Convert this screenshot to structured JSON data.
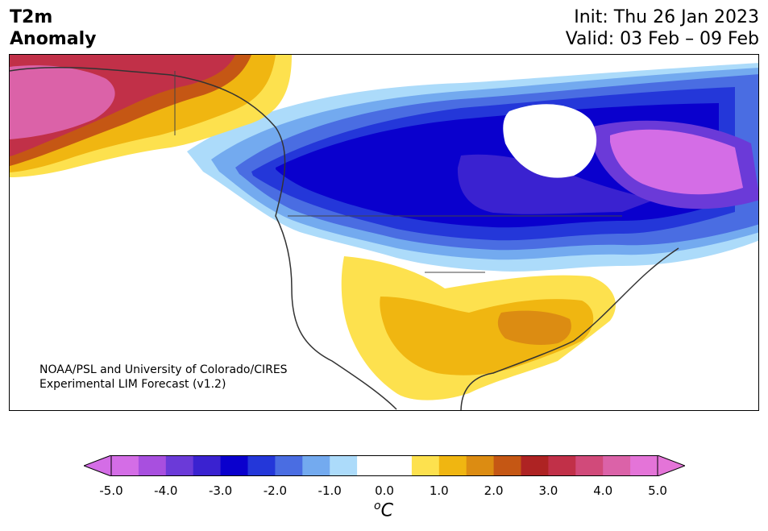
{
  "title": {
    "line1": "T2m",
    "line2": "Anomaly"
  },
  "dates": {
    "init": "Init: Thu 26 Jan 2023",
    "valid": "Valid: 03 Feb – 09 Feb"
  },
  "credit": {
    "line1": "NOAA/PSL and University of Colorado/CIRES",
    "line2": "Experimental LIM Forecast (v1.2)"
  },
  "colorbar": {
    "ticks": [
      "-5.0",
      "-4.0",
      "-3.0",
      "-2.0",
      "-1.0",
      "0.0",
      "1.0",
      "2.0",
      "3.0",
      "4.0",
      "5.0"
    ],
    "unit_base": "C",
    "unit_sup": "o",
    "colors": [
      "#d46de6",
      "#a84fdf",
      "#6b3ad8",
      "#3a22d0",
      "#0a00cd",
      "#2437d9",
      "#4a6de2",
      "#73aaef",
      "#acdbfa",
      "#ffffff",
      "#ffffff",
      "#fde14e",
      "#f0b611",
      "#dc8c12",
      "#c55714",
      "#ae2323",
      "#c13048",
      "#d14a7a",
      "#db62a8",
      "#e474d8"
    ],
    "under_color": "#d46de6",
    "over_color": "#e474d8"
  }
}
